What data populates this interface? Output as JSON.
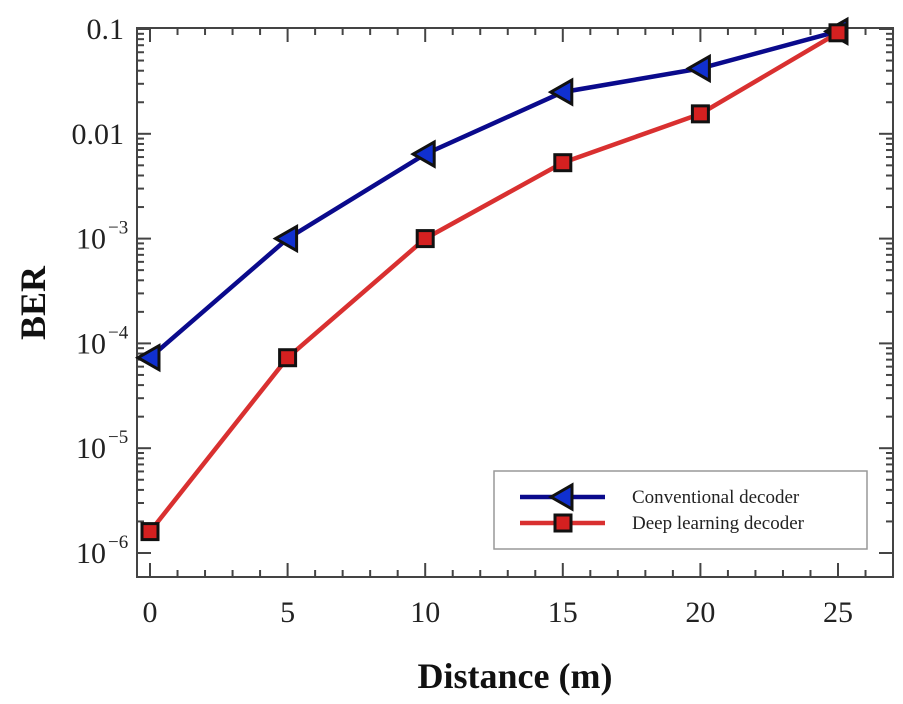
{
  "chart_data": {
    "type": "line",
    "title": "",
    "xlabel": "Distance (m)",
    "ylabel": "BER",
    "x": [
      0,
      5,
      10,
      15,
      20,
      25
    ],
    "xlim": [
      -0.5,
      27
    ],
    "xticks": [
      0,
      5,
      10,
      15,
      20,
      25
    ],
    "ylim": [
      6e-07,
      0.1
    ],
    "yscale": "log",
    "yticks": [
      {
        "value": 1e-06,
        "label": "10",
        "exp": "−6"
      },
      {
        "value": 1e-05,
        "label": "10",
        "exp": "−5"
      },
      {
        "value": 0.0001,
        "label": "10",
        "exp": "−4"
      },
      {
        "value": 0.001,
        "label": "10",
        "exp": "−3"
      },
      {
        "value": 0.01,
        "label": "0.01",
        "exp": ""
      },
      {
        "value": 0.1,
        "label": "0.1",
        "exp": ""
      }
    ],
    "grid": false,
    "legend_position": "bottom-right",
    "series": [
      {
        "name": "Conventional decoder",
        "color": "#0a0a8c",
        "marker": "triangle-left",
        "marker_color": "#1030d0",
        "values": [
          7.3e-05,
          0.001,
          0.0064,
          0.025,
          0.042,
          0.095
        ]
      },
      {
        "name": "Deep learning decoder",
        "color": "#d93030",
        "marker": "square",
        "marker_color": "#d42020",
        "values": [
          1.6e-06,
          7.3e-05,
          0.001,
          0.0053,
          0.0155,
          0.092
        ]
      }
    ]
  }
}
